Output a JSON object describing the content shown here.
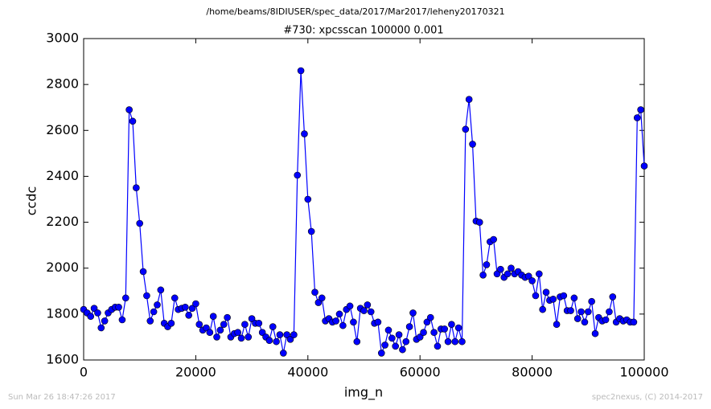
{
  "chart_data": {
    "type": "line",
    "title": "/home/beams/8IDIUSER/spec_data/2017/Mar2017/leheny20170321",
    "subtitle": "#730: xpcsscan 100000 0.001",
    "x_label": "img_n",
    "y_label": "ccdc",
    "footer_left": "Sun Mar 26 18:47:26 2017",
    "footer_right": "spec2nexus, (C) 2014-2017",
    "xlim": [
      0,
      100000
    ],
    "xticks": [
      0,
      20000,
      40000,
      60000,
      80000,
      100000
    ],
    "ylim": [
      1600,
      3000
    ],
    "yticks": [
      1600,
      1800,
      2000,
      2200,
      2400,
      2600,
      2800,
      3000
    ],
    "grid": false,
    "series": [
      {
        "color": "#0000ff",
        "x": [
          0,
          625,
          1250,
          1875,
          2500,
          3125,
          3750,
          4375,
          5000,
          5625,
          6250,
          6875,
          7500,
          8125,
          8750,
          9375,
          10000,
          10625,
          11250,
          11875,
          12500,
          13125,
          13750,
          14375,
          15000,
          15625,
          16250,
          16875,
          17500,
          18125,
          18750,
          19375,
          20000,
          20625,
          21250,
          21875,
          22500,
          23125,
          23750,
          24375,
          25000,
          25625,
          26250,
          26875,
          27500,
          28125,
          28750,
          29375,
          30000,
          30625,
          31250,
          31875,
          32500,
          33125,
          33750,
          34375,
          35000,
          35625,
          36250,
          36875,
          37500,
          38125,
          38750,
          39375,
          40000,
          40625,
          41250,
          41875,
          42500,
          43125,
          43750,
          44375,
          45000,
          45625,
          46250,
          46875,
          47500,
          48125,
          48750,
          49375,
          50000,
          50625,
          51250,
          51875,
          52500,
          53125,
          53750,
          54375,
          55000,
          55625,
          56250,
          56875,
          57500,
          58125,
          58750,
          59375,
          60000,
          60625,
          61250,
          61875,
          62500,
          63125,
          63750,
          64375,
          65000,
          65625,
          66250,
          66875,
          67500,
          68125,
          68750,
          69375,
          70000,
          70625,
          71250,
          71875,
          72500,
          73125,
          73750,
          74375,
          75000,
          75625,
          76250,
          76875,
          77500,
          78125,
          78750,
          79375,
          80000,
          80625,
          81250,
          81875,
          82500,
          83125,
          83750,
          84375,
          85000,
          85625,
          86250,
          86875,
          87500,
          88125,
          88750,
          89375,
          90000,
          90625,
          91250,
          91875,
          92500,
          93125,
          93750,
          94375,
          95000,
          95625,
          96250,
          96875,
          97500,
          98125,
          98750,
          99375,
          100000
        ],
        "values": [
          1820,
          1805,
          1790,
          1825,
          1805,
          1740,
          1770,
          1805,
          1820,
          1830,
          1830,
          1775,
          1870,
          2690,
          2640,
          2350,
          2195,
          1985,
          1880,
          1770,
          1810,
          1840,
          1905,
          1760,
          1745,
          1760,
          1870,
          1820,
          1825,
          1830,
          1795,
          1825,
          1845,
          1755,
          1730,
          1740,
          1720,
          1790,
          1700,
          1730,
          1755,
          1785,
          1700,
          1715,
          1720,
          1695,
          1755,
          1700,
          1780,
          1760,
          1760,
          1720,
          1700,
          1685,
          1745,
          1680,
          1710,
          1630,
          1710,
          1690,
          1710,
          2405,
          2860,
          2585,
          2300,
          2160,
          1895,
          1850,
          1870,
          1770,
          1780,
          1765,
          1770,
          1800,
          1750,
          1820,
          1835,
          1765,
          1680,
          1825,
          1815,
          1840,
          1810,
          1760,
          1765,
          1630,
          1665,
          1730,
          1695,
          1660,
          1710,
          1645,
          1680,
          1745,
          1805,
          1690,
          1700,
          1720,
          1765,
          1785,
          1720,
          1660,
          1735,
          1735,
          1680,
          1755,
          1680,
          1740,
          1680,
          2605,
          2735,
          2540,
          2205,
          2200,
          1970,
          2015,
          2115,
          2125,
          1975,
          1995,
          1960,
          1975,
          2000,
          1975,
          1985,
          1970,
          1960,
          1965,
          1945,
          1880,
          1975,
          1820,
          1895,
          1860,
          1865,
          1755,
          1875,
          1880,
          1815,
          1815,
          1870,
          1780,
          1810,
          1765,
          1810,
          1855,
          1715,
          1785,
          1770,
          1775,
          1810,
          1875,
          1765,
          1780,
          1770,
          1775,
          1765,
          1765,
          2655,
          2690,
          2445
        ]
      }
    ]
  }
}
